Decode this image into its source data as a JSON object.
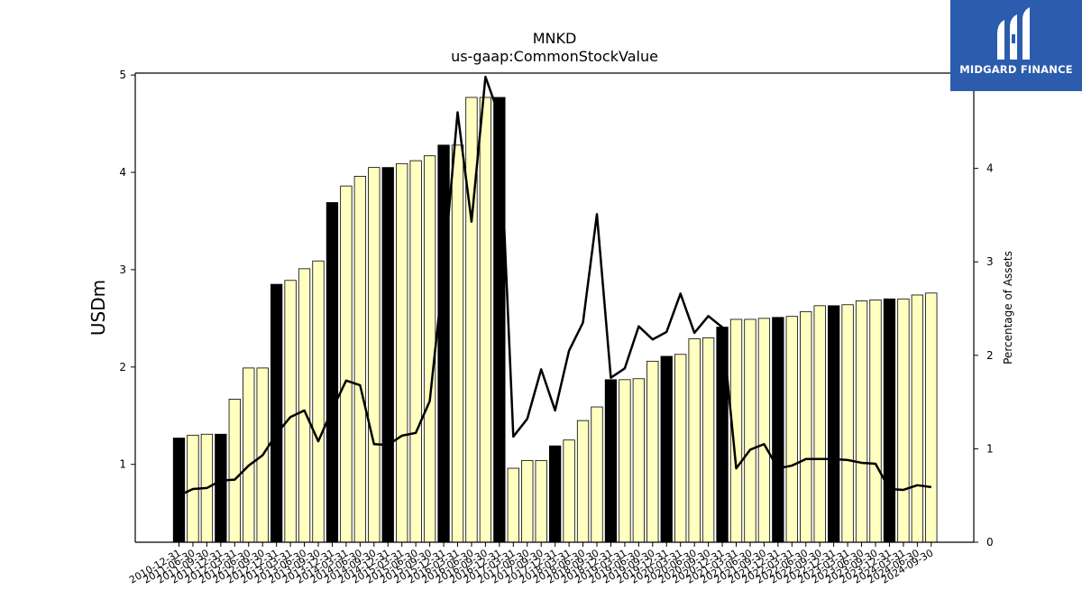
{
  "colors": {
    "bar_annual": "#000000",
    "bar_quarter": "#ffffc0",
    "line": "#000000",
    "logo_bg": "#2b5cad",
    "logo_fg": "#ffffff"
  },
  "logo": {
    "text": "MIDGARD FINANCE",
    "icon": "midgard-logo-icon"
  },
  "chart_data": {
    "type": "bar",
    "title": "MNKD",
    "subtitle": "us-gaap:CommonStockValue",
    "ylabel": "USDm",
    "y2label": "Percentage of Assets",
    "ylim": [
      0.2,
      5.02
    ],
    "y2lim": [
      0,
      5.02
    ],
    "yticks": [
      1,
      2,
      3,
      4,
      5
    ],
    "y2ticks": [
      0,
      1,
      2,
      3,
      4,
      5
    ],
    "grid": false,
    "categories": [
      "2010-12-31",
      "2011-06-30",
      "2011-09-30",
      "2011-12-31",
      "2012-03-31",
      "2012-06-30",
      "2012-09-30",
      "2012-12-31",
      "2013-03-31",
      "2013-06-30",
      "2013-09-30",
      "2013-12-31",
      "2014-03-31",
      "2014-06-30",
      "2014-09-30",
      "2014-12-31",
      "2015-03-31",
      "2015-06-30",
      "2015-09-30",
      "2015-12-31",
      "2016-03-31",
      "2016-06-30",
      "2016-09-30",
      "2016-12-31",
      "2017-03-31",
      "2017-06-30",
      "2017-09-30",
      "2017-12-31",
      "2018-03-31",
      "2018-06-30",
      "2018-09-30",
      "2018-12-31",
      "2019-03-31",
      "2019-06-30",
      "2019-09-30",
      "2019-12-31",
      "2020-03-31",
      "2020-06-30",
      "2020-09-30",
      "2020-12-31",
      "2021-03-31",
      "2021-06-30",
      "2021-09-30",
      "2021-12-31",
      "2022-03-31",
      "2022-06-30",
      "2022-09-30",
      "2022-12-31",
      "2023-03-31",
      "2023-06-30",
      "2023-09-30",
      "2023-12-31",
      "2024-03-31",
      "2024-06-30",
      "2024-09-30"
    ],
    "annual": [
      1,
      0,
      0,
      1,
      0,
      0,
      0,
      1,
      0,
      0,
      0,
      1,
      0,
      0,
      0,
      1,
      0,
      0,
      0,
      1,
      0,
      0,
      0,
      1,
      0,
      0,
      0,
      1,
      0,
      0,
      0,
      1,
      0,
      0,
      0,
      1,
      0,
      0,
      0,
      1,
      0,
      0,
      0,
      1,
      0,
      0,
      0,
      1,
      0,
      0,
      0,
      1,
      0,
      0,
      0
    ],
    "series": [
      {
        "values": [
          1.27,
          1.3,
          1.31,
          1.31,
          1.67,
          1.99,
          1.99,
          2.85,
          2.89,
          3.01,
          3.09,
          3.69,
          3.86,
          3.96,
          4.05,
          4.05,
          4.09,
          4.12,
          4.17,
          4.28,
          4.28,
          4.77,
          4.77,
          4.77,
          0.96,
          1.04,
          1.04,
          1.19,
          1.25,
          1.45,
          1.59,
          1.87,
          1.87,
          1.88,
          2.06,
          2.11,
          2.13,
          2.29,
          2.3,
          2.41,
          2.49,
          2.49,
          2.5,
          2.51,
          2.52,
          2.57,
          2.63,
          2.63,
          2.64,
          2.68,
          2.69,
          2.7,
          2.7,
          2.74,
          2.76
        ]
      },
      {
        "values": [
          0.5,
          0.57,
          0.58,
          0.66,
          0.67,
          0.82,
          0.93,
          1.16,
          1.34,
          1.41,
          1.08,
          1.42,
          1.73,
          1.68,
          1.05,
          1.04,
          1.14,
          1.17,
          1.51,
          2.91,
          4.6,
          3.43,
          4.98,
          4.56,
          1.13,
          1.32,
          1.85,
          1.41,
          2.05,
          2.35,
          3.51,
          1.76,
          1.86,
          2.31,
          2.17,
          2.25,
          2.66,
          2.24,
          2.42,
          2.3,
          0.79,
          0.99,
          1.05,
          0.79,
          0.82,
          0.89,
          0.89,
          0.89,
          0.88,
          0.85,
          0.84,
          0.57,
          0.56,
          0.61,
          0.59
        ]
      }
    ]
  }
}
